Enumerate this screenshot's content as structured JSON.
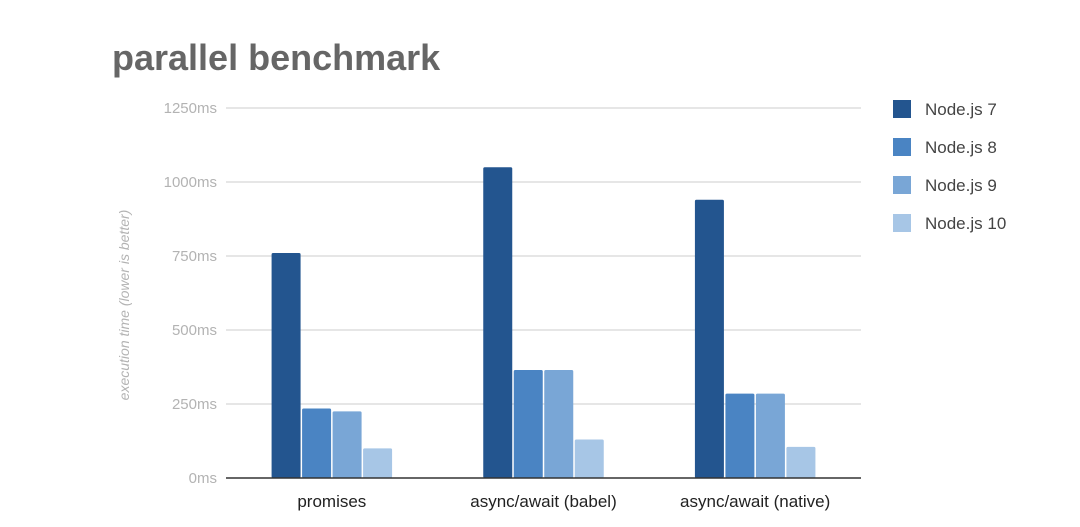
{
  "chart_data": {
    "type": "bar",
    "title": "parallel benchmark",
    "ylabel": "execution time (lower is better)",
    "xlabel": "",
    "categories": [
      "promises",
      "async/await (babel)",
      "async/await (native)"
    ],
    "series": [
      {
        "name": "Node.js 7",
        "values": [
          760,
          1050,
          940
        ],
        "color": "#23558f"
      },
      {
        "name": "Node.js 8",
        "values": [
          235,
          365,
          285
        ],
        "color": "#4a84c3"
      },
      {
        "name": "Node.js 9",
        "values": [
          225,
          365,
          285
        ],
        "color": "#79a6d6"
      },
      {
        "name": "Node.js 10",
        "values": [
          100,
          130,
          105
        ],
        "color": "#a7c6e6"
      }
    ],
    "ylim": [
      0,
      1250
    ],
    "yticks": [
      0,
      250,
      500,
      750,
      1000,
      1250
    ],
    "ytick_labels": [
      "0ms",
      "250ms",
      "500ms",
      "750ms",
      "1000ms",
      "1250ms"
    ],
    "grid": true,
    "legend_position": "right"
  }
}
